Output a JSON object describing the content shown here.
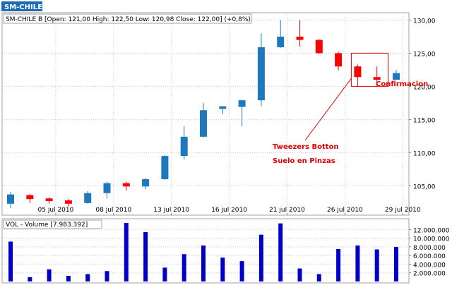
{
  "header": {
    "symbol": "SM-CHILE B",
    "price_info": "SM-CHILE B [Open: 121,00  High: 122,50  Low: 120,98  Close: 122,00] (+0,8%)",
    "volume_info": "VOL - Volume [7.983.392]"
  },
  "annotations": {
    "pattern_name": "Tweezers Botton",
    "pattern_name_es": "Suelo en Pinzas",
    "confirmation": "Confirmacion"
  },
  "colors": {
    "up": "#1e78be",
    "down": "#ff0000",
    "volume": "#0000c8",
    "annotation": "#e00000",
    "grid": "#c8c8c8",
    "header_bg": "#1e6ab4"
  },
  "chart_data": [
    {
      "type": "candlestick",
      "title": "SM-CHILE B [Open: 121,00  High: 122,50  Low: 120,98  Close: 122,00] (+0,8%)",
      "ylim": [
        101,
        131
      ],
      "yticks": [
        105,
        110,
        115,
        120,
        125,
        130
      ],
      "ytick_labels": [
        "105,00",
        "110,00",
        "115,00",
        "120,00",
        "125,00",
        "130,00"
      ],
      "xtick_labels": [
        "05 jul 2010",
        "08 jul 2010",
        "13 jul 2010",
        "16 jul 2010",
        "21 jul 2010",
        "26 jul 2010",
        "29 jul 2010"
      ],
      "xtick_index": [
        3,
        6,
        9,
        12,
        15,
        18,
        21
      ],
      "candles": [
        {
          "open": 102.3,
          "high": 104.1,
          "low": 101.6,
          "close": 103.7
        },
        {
          "open": 103.6,
          "high": 103.8,
          "low": 102.4,
          "close": 103.0
        },
        {
          "open": 103.1,
          "high": 103.3,
          "low": 102.3,
          "close": 102.7
        },
        {
          "open": 102.8,
          "high": 103.0,
          "low": 101.9,
          "close": 102.3
        },
        {
          "open": 102.4,
          "high": 104.2,
          "low": 102.3,
          "close": 103.9
        },
        {
          "open": 103.9,
          "high": 105.6,
          "low": 103.1,
          "close": 105.4
        },
        {
          "open": 105.4,
          "high": 105.6,
          "low": 104.3,
          "close": 104.9
        },
        {
          "open": 104.9,
          "high": 106.2,
          "low": 104.5,
          "close": 106.0
        },
        {
          "open": 106.0,
          "high": 109.6,
          "low": 105.9,
          "close": 109.5
        },
        {
          "open": 109.5,
          "high": 114.0,
          "low": 109.0,
          "close": 112.4
        },
        {
          "open": 112.4,
          "high": 117.5,
          "low": 112.3,
          "close": 116.4
        },
        {
          "open": 116.6,
          "high": 117.0,
          "low": 115.8,
          "close": 117.0
        },
        {
          "open": 116.9,
          "high": 118.0,
          "low": 114.0,
          "close": 117.9
        },
        {
          "open": 117.9,
          "high": 128.0,
          "low": 117.0,
          "close": 125.9
        },
        {
          "open": 125.9,
          "high": 130.0,
          "low": 125.8,
          "close": 127.5
        },
        {
          "open": 127.5,
          "high": 130.0,
          "low": 126.0,
          "close": 127.0
        },
        {
          "open": 127.0,
          "high": 127.1,
          "low": 124.9,
          "close": 125.0
        },
        {
          "open": 125.0,
          "high": 125.2,
          "low": 122.4,
          "close": 123.0
        },
        {
          "open": 123.0,
          "high": 123.3,
          "low": 120.0,
          "close": 121.4
        },
        {
          "open": 121.4,
          "high": 123.0,
          "low": 120.0,
          "close": 121.0
        },
        {
          "open": 121.0,
          "high": 122.5,
          "low": 120.98,
          "close": 122.0
        }
      ]
    },
    {
      "type": "bar",
      "title": "VOL - Volume [7.983.392]",
      "ylim": [
        0,
        14000000
      ],
      "yticks": [
        2000000,
        4000000,
        6000000,
        8000000,
        10000000,
        12000000
      ],
      "ytick_labels": [
        "2.000.000",
        "4.000.000",
        "6.000.000",
        "8.000.000",
        "10.000.000",
        "12.000.000"
      ],
      "values": [
        9200000,
        1000000,
        2800000,
        1300000,
        1700000,
        2400000,
        13500000,
        11400000,
        3200000,
        6300000,
        8300000,
        5500000,
        4700000,
        10800000,
        13400000,
        3000000,
        1700000,
        7500000,
        8300000,
        7400000,
        7983392
      ]
    }
  ]
}
